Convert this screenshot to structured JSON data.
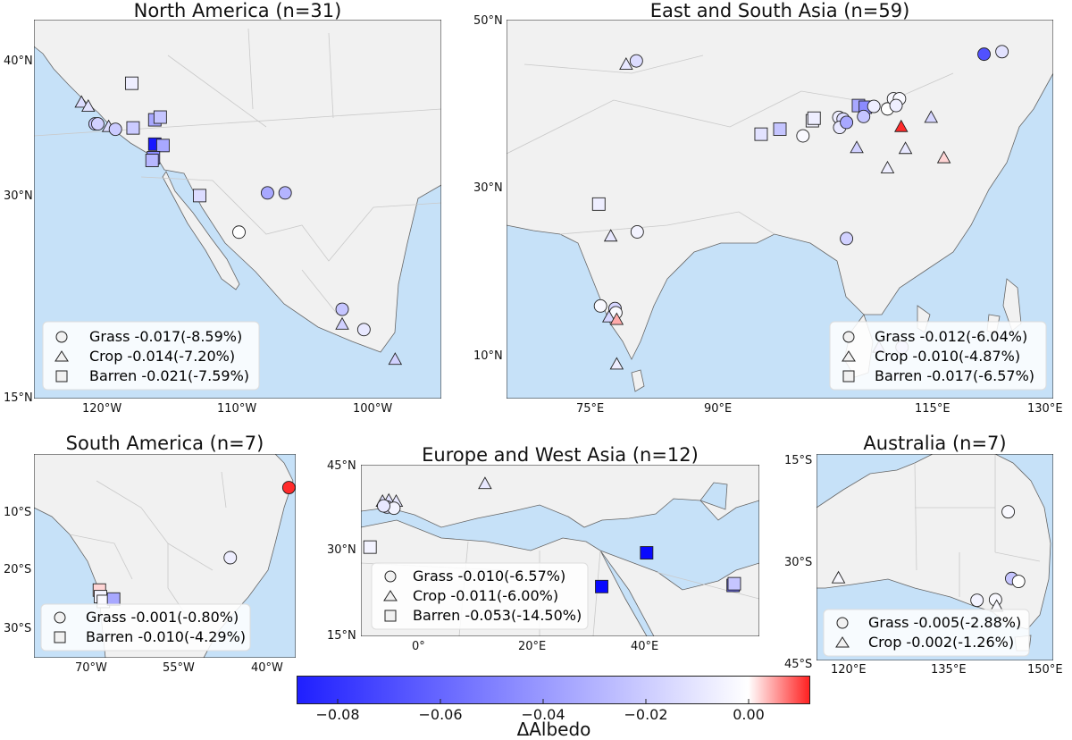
{
  "chart_data": [
    {
      "type": "scatter",
      "title": "North America (n=31)",
      "lon_range": [
        -125,
        -95
      ],
      "lat_range": [
        15,
        43
      ],
      "x_ticks": [
        "120°W",
        "110°W",
        "100°W"
      ],
      "y_ticks": [
        "15°N",
        "30°N",
        "40°N"
      ],
      "legend": [
        {
          "marker": "circle",
          "label": "Grass -0.017(-8.59%)"
        },
        {
          "marker": "triangle",
          "label": "Crop -0.014(-7.20%)"
        },
        {
          "marker": "square",
          "label": "Barren -0.021(-7.59%)"
        }
      ],
      "points": [
        {
          "marker": "triangle",
          "lon": -121.5,
          "lat": 36.9,
          "value": -0.012
        },
        {
          "marker": "triangle",
          "lon": -121.0,
          "lat": 36.6,
          "value": -0.01
        },
        {
          "marker": "circle",
          "lon": -120.5,
          "lat": 35.3,
          "value": -0.02
        },
        {
          "marker": "circle",
          "lon": -120.3,
          "lat": 35.3,
          "value": -0.016
        },
        {
          "marker": "triangle",
          "lon": -119.5,
          "lat": 35.1,
          "value": -0.012
        },
        {
          "marker": "circle",
          "lon": -119.0,
          "lat": 34.9,
          "value": -0.018
        },
        {
          "marker": "square",
          "lon": -117.8,
          "lat": 38.3,
          "value": -0.006
        },
        {
          "marker": "square",
          "lon": -117.7,
          "lat": 35.0,
          "value": -0.018
        },
        {
          "marker": "square",
          "lon": -116.1,
          "lat": 35.6,
          "value": -0.03
        },
        {
          "marker": "square",
          "lon": -115.7,
          "lat": 35.8,
          "value": -0.02
        },
        {
          "marker": "square",
          "lon": -116.1,
          "lat": 33.8,
          "value": -0.08
        },
        {
          "marker": "square",
          "lon": -115.5,
          "lat": 33.7,
          "value": -0.03
        },
        {
          "marker": "square",
          "lon": -116.2,
          "lat": 32.8,
          "value": -0.04
        },
        {
          "marker": "square",
          "lon": -116.3,
          "lat": 32.6,
          "value": -0.025
        },
        {
          "marker": "square",
          "lon": -112.8,
          "lat": 30.0,
          "value": -0.012
        },
        {
          "marker": "circle",
          "lon": -107.8,
          "lat": 30.2,
          "value": -0.03
        },
        {
          "marker": "circle",
          "lon": -106.5,
          "lat": 30.2,
          "value": -0.026
        },
        {
          "marker": "circle",
          "lon": -109.9,
          "lat": 27.3,
          "value": 0.0
        },
        {
          "marker": "circle",
          "lon": -102.3,
          "lat": 21.6,
          "value": -0.02
        },
        {
          "marker": "triangle",
          "lon": -102.3,
          "lat": 20.5,
          "value": -0.016
        },
        {
          "marker": "circle",
          "lon": -100.7,
          "lat": 20.1,
          "value": -0.008
        },
        {
          "marker": "triangle",
          "lon": -98.4,
          "lat": 17.9,
          "value": -0.016
        }
      ]
    },
    {
      "type": "scatter",
      "title": "East and South Asia (n=59)",
      "lon_range": [
        66,
        130
      ],
      "lat_range": [
        5,
        50
      ],
      "x_ticks": [
        "75°E",
        "90°E",
        "115°E",
        "130°E"
      ],
      "y_ticks": [
        "10°N",
        "30°N",
        "50°N"
      ],
      "legend": [
        {
          "marker": "circle",
          "label": "Grass -0.012(-6.04%)"
        },
        {
          "marker": "triangle",
          "label": "Crop -0.010(-4.87%)"
        },
        {
          "marker": "square",
          "label": "Barren -0.017(-6.57%)"
        }
      ],
      "points": [
        {
          "marker": "triangle",
          "lon": 80.0,
          "lat": 44.7,
          "value": -0.008
        },
        {
          "marker": "circle",
          "lon": 81.2,
          "lat": 45.1,
          "value": -0.012
        },
        {
          "marker": "circle",
          "lon": 121.9,
          "lat": 45.9,
          "value": -0.06
        },
        {
          "marker": "circle",
          "lon": 124.0,
          "lat": 46.2,
          "value": -0.01
        },
        {
          "marker": "square",
          "lon": 95.8,
          "lat": 36.4,
          "value": -0.01
        },
        {
          "marker": "square",
          "lon": 98.0,
          "lat": 37.0,
          "value": -0.02
        },
        {
          "marker": "square",
          "lon": 101.8,
          "lat": 38.0,
          "value": -0.004
        },
        {
          "marker": "square",
          "lon": 102.0,
          "lat": 38.3,
          "value": -0.006
        },
        {
          "marker": "circle",
          "lon": 100.7,
          "lat": 36.2,
          "value": -0.002
        },
        {
          "marker": "circle",
          "lon": 104.9,
          "lat": 38.4,
          "value": -0.006
        },
        {
          "marker": "circle",
          "lon": 105.4,
          "lat": 38.2,
          "value": -0.012
        },
        {
          "marker": "circle",
          "lon": 105.0,
          "lat": 37.2,
          "value": -0.008
        },
        {
          "marker": "circle",
          "lon": 105.8,
          "lat": 37.8,
          "value": -0.03
        },
        {
          "marker": "square",
          "lon": 107.2,
          "lat": 39.8,
          "value": -0.03
        },
        {
          "marker": "square",
          "lon": 108.0,
          "lat": 39.6,
          "value": -0.04
        },
        {
          "marker": "circle",
          "lon": 107.8,
          "lat": 38.5,
          "value": -0.02
        },
        {
          "marker": "circle",
          "lon": 109.0,
          "lat": 39.7,
          "value": -0.006
        },
        {
          "marker": "circle",
          "lon": 110.6,
          "lat": 39.4,
          "value": 0.0
        },
        {
          "marker": "circle",
          "lon": 111.3,
          "lat": 40.6,
          "value": -0.002
        },
        {
          "marker": "circle",
          "lon": 112.0,
          "lat": 40.6,
          "value": -0.002
        },
        {
          "marker": "circle",
          "lon": 111.6,
          "lat": 39.8,
          "value": -0.006
        },
        {
          "marker": "triangle",
          "lon": 107.0,
          "lat": 34.8,
          "value": -0.016
        },
        {
          "marker": "triangle",
          "lon": 110.6,
          "lat": 32.4,
          "value": -0.006
        },
        {
          "marker": "triangle",
          "lon": 112.7,
          "lat": 34.7,
          "value": -0.008
        },
        {
          "marker": "triangle",
          "lon": 112.2,
          "lat": 37.3,
          "value": 0.01
        },
        {
          "marker": "triangle",
          "lon": 115.7,
          "lat": 38.4,
          "value": -0.014
        },
        {
          "marker": "triangle",
          "lon": 117.2,
          "lat": 33.6,
          "value": 0.002
        },
        {
          "marker": "square",
          "lon": 76.8,
          "lat": 28.1,
          "value": -0.006
        },
        {
          "marker": "triangle",
          "lon": 78.2,
          "lat": 24.3,
          "value": -0.008
        },
        {
          "marker": "circle",
          "lon": 81.3,
          "lat": 24.8,
          "value": -0.004
        },
        {
          "marker": "circle",
          "lon": 105.8,
          "lat": 24.0,
          "value": -0.016
        },
        {
          "marker": "circle",
          "lon": 77.0,
          "lat": 16.0,
          "value": -0.002
        },
        {
          "marker": "circle",
          "lon": 78.7,
          "lat": 15.7,
          "value": -0.014
        },
        {
          "marker": "circle",
          "lon": 78.8,
          "lat": 15.2,
          "value": -0.002
        },
        {
          "marker": "triangle",
          "lon": 78.0,
          "lat": 14.7,
          "value": -0.014
        },
        {
          "marker": "triangle",
          "lon": 78.9,
          "lat": 14.4,
          "value": 0.004
        },
        {
          "marker": "triangle",
          "lon": 78.9,
          "lat": 9.1,
          "value": -0.006
        },
        {
          "marker": "triangle",
          "lon": 109.6,
          "lat": 11.1,
          "value": -0.02
        },
        {
          "marker": "circle",
          "lon": 112.3,
          "lat": 11.1,
          "value": -0.018
        }
      ]
    },
    {
      "type": "scatter",
      "title": "South America (n=7)",
      "lon_range": [
        -80,
        -34
      ],
      "lat_range": [
        -34,
        0
      ],
      "x_ticks": [
        "70°W",
        "55°W",
        "40°W"
      ],
      "y_ticks": [
        "10°S",
        "20°S",
        "30°S"
      ],
      "legend": [
        {
          "marker": "circle",
          "label": "Grass -0.001(-0.80%)"
        },
        {
          "marker": "square",
          "label": "Barren -0.010(-4.29%)"
        }
      ],
      "points": [
        {
          "marker": "circle",
          "lon": -35.2,
          "lat": -5.6,
          "value": 0.01
        },
        {
          "marker": "circle",
          "lon": -45.5,
          "lat": -17.3,
          "value": -0.006
        },
        {
          "marker": "square",
          "lon": -68.5,
          "lat": -22.7,
          "value": 0.002
        },
        {
          "marker": "square",
          "lon": -68.3,
          "lat": -23.8,
          "value": -0.004
        },
        {
          "marker": "square",
          "lon": -67.8,
          "lat": -24.6,
          "value": -0.002
        },
        {
          "marker": "square",
          "lon": -66.0,
          "lat": -24.2,
          "value": -0.03
        }
      ]
    },
    {
      "type": "scatter",
      "title": "Europe and West Asia (n=12)",
      "lon_range": [
        -10,
        60
      ],
      "lat_range": [
        15,
        45
      ],
      "x_ticks": [
        "0°",
        "20°E",
        "40°E"
      ],
      "y_ticks": [
        "15°N",
        "30°N",
        "45°N"
      ],
      "legend": [
        {
          "marker": "circle",
          "label": "Grass -0.010(-6.57%)"
        },
        {
          "marker": "triangle",
          "label": "Crop -0.011(-6.00%)"
        },
        {
          "marker": "square",
          "label": "Barren -0.053(-14.50%)"
        }
      ],
      "points": [
        {
          "marker": "triangle",
          "lon": -6.2,
          "lat": 38.6,
          "value": -0.01
        },
        {
          "marker": "triangle",
          "lon": -5.1,
          "lat": 38.8,
          "value": -0.01
        },
        {
          "marker": "triangle",
          "lon": -3.8,
          "lat": 38.6,
          "value": -0.008
        },
        {
          "marker": "circle",
          "lon": -5.4,
          "lat": 37.6,
          "value": -0.01
        },
        {
          "marker": "circle",
          "lon": -4.2,
          "lat": 37.4,
          "value": -0.004
        },
        {
          "marker": "circle",
          "lon": -6.0,
          "lat": 37.8,
          "value": -0.008
        },
        {
          "marker": "triangle",
          "lon": 11.8,
          "lat": 41.7,
          "value": -0.008
        },
        {
          "marker": "square",
          "lon": -8.4,
          "lat": 30.6,
          "value": -0.004
        },
        {
          "marker": "square",
          "lon": 40.2,
          "lat": 29.6,
          "value": -0.085
        },
        {
          "marker": "square",
          "lon": 32.3,
          "lat": 23.7,
          "value": -0.085
        },
        {
          "marker": "square",
          "lon": 55.4,
          "lat": 23.9,
          "value": -0.05
        },
        {
          "marker": "square",
          "lon": 55.6,
          "lat": 24.2,
          "value": -0.02
        }
      ]
    },
    {
      "type": "scatter",
      "title": "Australia (n=7)",
      "lon_range": [
        113,
        154
      ],
      "lat_range": [
        -45,
        -10
      ],
      "x_ticks": [
        "120°E",
        "135°E",
        "150°E"
      ],
      "y_ticks": [
        "15°S",
        "30°S",
        "45°S"
      ],
      "legend": [
        {
          "marker": "circle",
          "label": "Grass -0.005(-2.88%)"
        },
        {
          "marker": "triangle",
          "label": "Crop -0.002(-1.26%)"
        }
      ],
      "points": [
        {
          "marker": "circle",
          "lon": 146.2,
          "lat": -19.8,
          "value": -0.002
        },
        {
          "marker": "triangle",
          "lon": 116.8,
          "lat": -31.0,
          "value": -0.002
        },
        {
          "marker": "circle",
          "lon": 146.8,
          "lat": -31.1,
          "value": -0.02
        },
        {
          "marker": "circle",
          "lon": 148.0,
          "lat": -31.6,
          "value": 0.0
        },
        {
          "marker": "circle",
          "lon": 140.8,
          "lat": -34.8,
          "value": -0.004
        },
        {
          "marker": "circle",
          "lon": 144.0,
          "lat": -34.7,
          "value": -0.002
        },
        {
          "marker": "triangle",
          "lon": 144.2,
          "lat": -35.8,
          "value": -0.002
        }
      ]
    }
  ],
  "colorbar": {
    "label": "ΔAlbedo",
    "vmin": -0.088,
    "vmax": 0.012,
    "ticks": [
      {
        "value": -0.08,
        "label": "−0.08"
      },
      {
        "value": -0.06,
        "label": "−0.06"
      },
      {
        "value": -0.04,
        "label": "−0.04"
      },
      {
        "value": -0.02,
        "label": "−0.02"
      },
      {
        "value": 0.0,
        "label": "0.00"
      }
    ],
    "colors": {
      "negative": "#0000ff",
      "neutral": "#ffffff",
      "positive": "#ff0000"
    }
  },
  "colors": {
    "ocean": "#c6e1f8",
    "land": "#f1f1f1",
    "border": "#c9c9c9",
    "coast": "#666666"
  }
}
